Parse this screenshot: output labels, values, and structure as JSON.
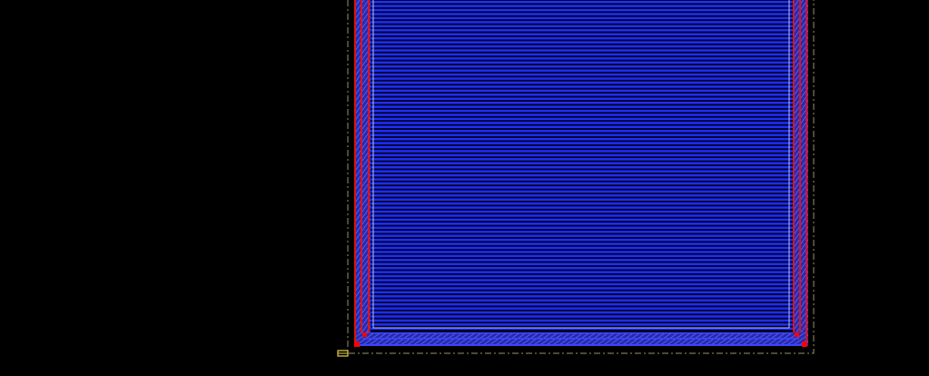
{
  "canvas": {
    "background": "#000000",
    "cell_boundary_style": "dash-dot",
    "cell_boundary_color": "#9a8f6a",
    "origin_marker_color": "#e8d24a",
    "origin_marker_icon": "origin-marker-icon"
  },
  "layers": {
    "metal_lines": {
      "color": "#1e2eff",
      "line_count": 82,
      "orientation": "horizontal"
    },
    "gap_color": "#04052a",
    "guard_ring": {
      "stripe_color": "#e01212",
      "fill_color": "#262ab0",
      "hatched": true
    },
    "contact_squares": {
      "color": "#ff0000",
      "count": 4
    },
    "inner_outline": {
      "color": "#b8c0ff"
    }
  }
}
